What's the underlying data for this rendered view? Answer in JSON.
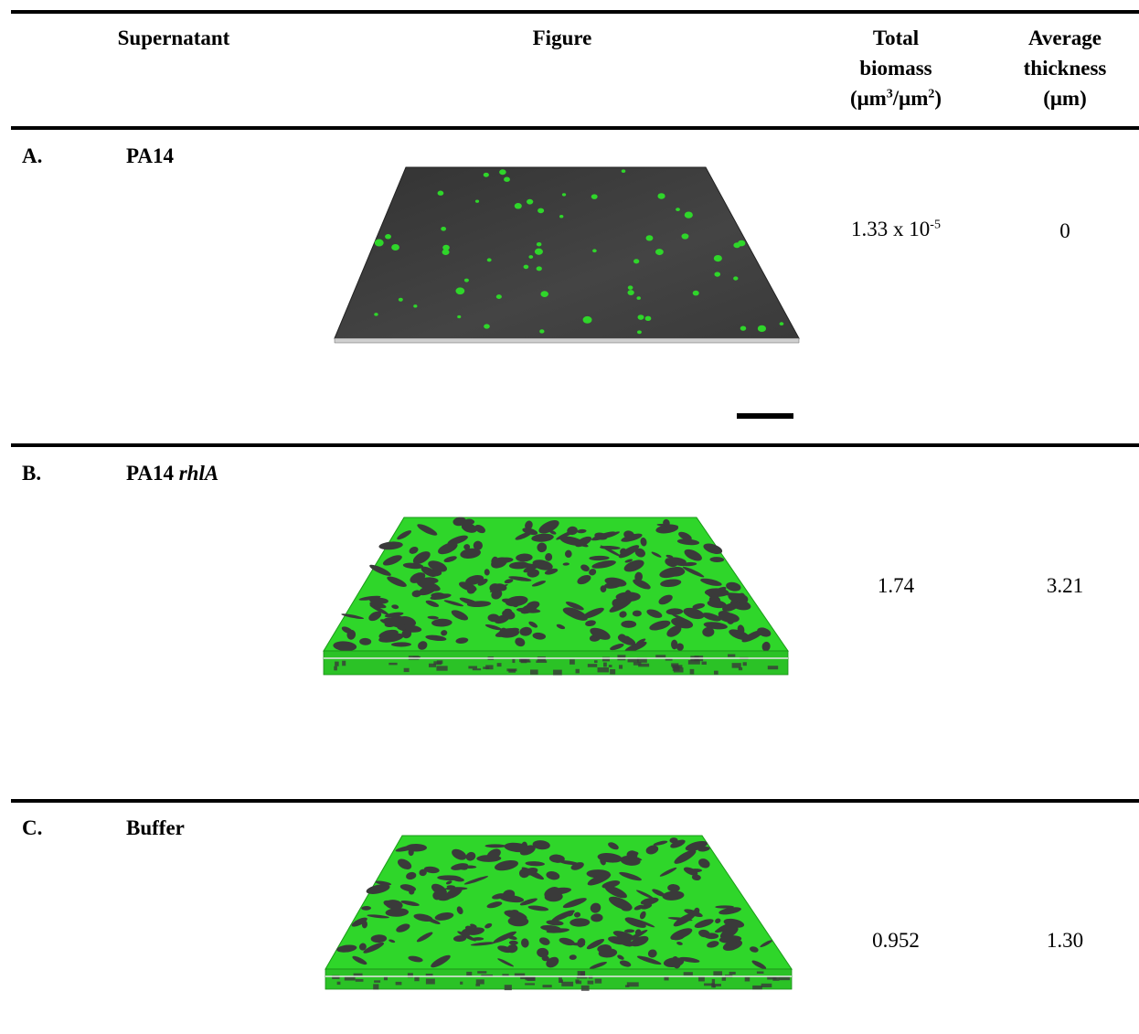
{
  "header": {
    "supernatant": "Supernatant",
    "figure": "Figure",
    "total_line1": "Total",
    "total_line2": "biomass",
    "total_unit_a": "(μm",
    "total_unit_sup1": "3",
    "total_unit_b": "/μm",
    "total_unit_sup2": "2",
    "total_unit_c": ")",
    "avg_line1": "Average",
    "avg_line2": "thickness",
    "avg_line3": "(μm)"
  },
  "rows": [
    {
      "letter": "A.",
      "name": "PA14",
      "name_italic": "",
      "biomass_base": "1.33 x 10",
      "biomass_exp": "-5",
      "thickness": "0",
      "figure_kind": "sparse"
    },
    {
      "letter": "B.",
      "name": "PA14 ",
      "name_italic": "rhlA",
      "biomass_base": "1.74",
      "biomass_exp": "",
      "thickness": "3.21",
      "figure_kind": "dense"
    },
    {
      "letter": "C.",
      "name": "Buffer",
      "name_italic": "",
      "biomass_base": "0.952",
      "biomass_exp": "",
      "thickness": "1.30",
      "figure_kind": "dense"
    }
  ],
  "colors": {
    "biofilm_green": "#2fd62a",
    "substrate_gray": "#3a3a3a"
  }
}
